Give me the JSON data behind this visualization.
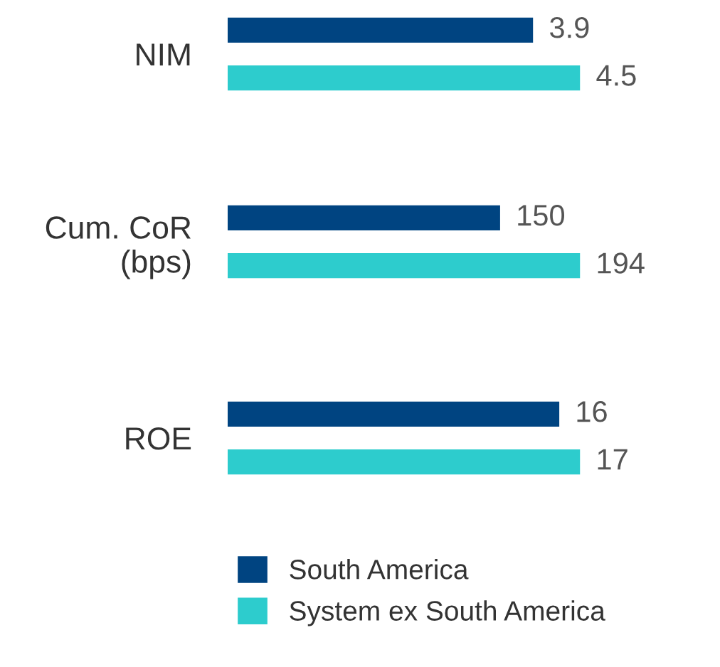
{
  "chart_data": [
    {
      "type": "bar",
      "orientation": "horizontal",
      "categories": [
        "NIM"
      ],
      "data_labels": true,
      "series": [
        {
          "color": "#004481",
          "values": [
            3.9
          ]
        },
        {
          "color": "#2dcccd",
          "values": [
            4.5
          ]
        }
      ]
    },
    {
      "type": "bar",
      "orientation": "horizontal",
      "categories": [
        "Cum. CoR\n(bps)"
      ],
      "data_labels": true,
      "series": [
        {
          "color": "#004481",
          "values": [
            150
          ]
        },
        {
          "color": "#2dcccd",
          "values": [
            194
          ]
        }
      ]
    },
    {
      "type": "bar",
      "orientation": "horizontal",
      "categories": [
        "ROE"
      ],
      "data_labels": true,
      "legend": "bottom",
      "series": [
        {
          "name": "South America",
          "color": "#004481",
          "values": [
            16
          ]
        },
        {
          "name": "System ex South America",
          "color": "#2dcccd",
          "values": [
            17
          ]
        }
      ]
    }
  ]
}
